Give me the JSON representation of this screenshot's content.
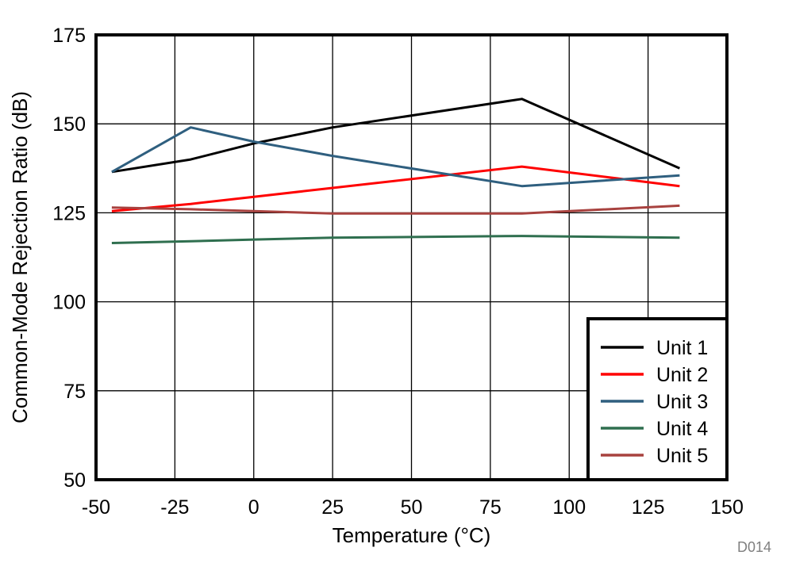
{
  "chart_data": {
    "type": "line",
    "title": "",
    "xlabel": "Temperature (°C)",
    "ylabel": "Common-Mode Rejection Ratio (dB)",
    "xlim": [
      -50,
      150
    ],
    "ylim": [
      50,
      175
    ],
    "x_ticks": [
      -50,
      -25,
      0,
      25,
      50,
      75,
      100,
      125,
      150
    ],
    "y_ticks": [
      50,
      75,
      100,
      125,
      150,
      175
    ],
    "x_tick_labels": [
      "-50",
      "-25",
      "0",
      "25",
      "50",
      "75",
      "100",
      "125",
      "150"
    ],
    "y_tick_labels": [
      "50",
      "75",
      "100",
      "125",
      "150",
      "175"
    ],
    "grid": true,
    "legend_position": "bottom-right",
    "series": [
      {
        "name": "Unit 1",
        "color": "#000000",
        "x": [
          -45,
          -20,
          0,
          25,
          85,
          135
        ],
        "y": [
          136.5,
          140,
          144.5,
          149,
          157,
          137.5
        ]
      },
      {
        "name": "Unit 2",
        "color": "#ff0000",
        "x": [
          -45,
          -20,
          0,
          25,
          85,
          135
        ],
        "y": [
          125.5,
          127.5,
          129.5,
          132,
          138,
          132.5
        ]
      },
      {
        "name": "Unit 3",
        "color": "#2f5f7f",
        "x": [
          -45,
          -20,
          0,
          25,
          85,
          135
        ],
        "y": [
          136.5,
          149,
          145,
          141,
          132.5,
          135.5
        ]
      },
      {
        "name": "Unit 4",
        "color": "#2f6f4f",
        "x": [
          -45,
          -20,
          0,
          25,
          85,
          135
        ],
        "y": [
          116.5,
          117,
          117.5,
          118,
          118.5,
          118
        ]
      },
      {
        "name": "Unit 5",
        "color": "#a8423f",
        "x": [
          -45,
          -20,
          0,
          25,
          85,
          135
        ],
        "y": [
          126.5,
          126,
          125.5,
          124.8,
          124.8,
          127
        ]
      }
    ],
    "annotation": "D014"
  }
}
